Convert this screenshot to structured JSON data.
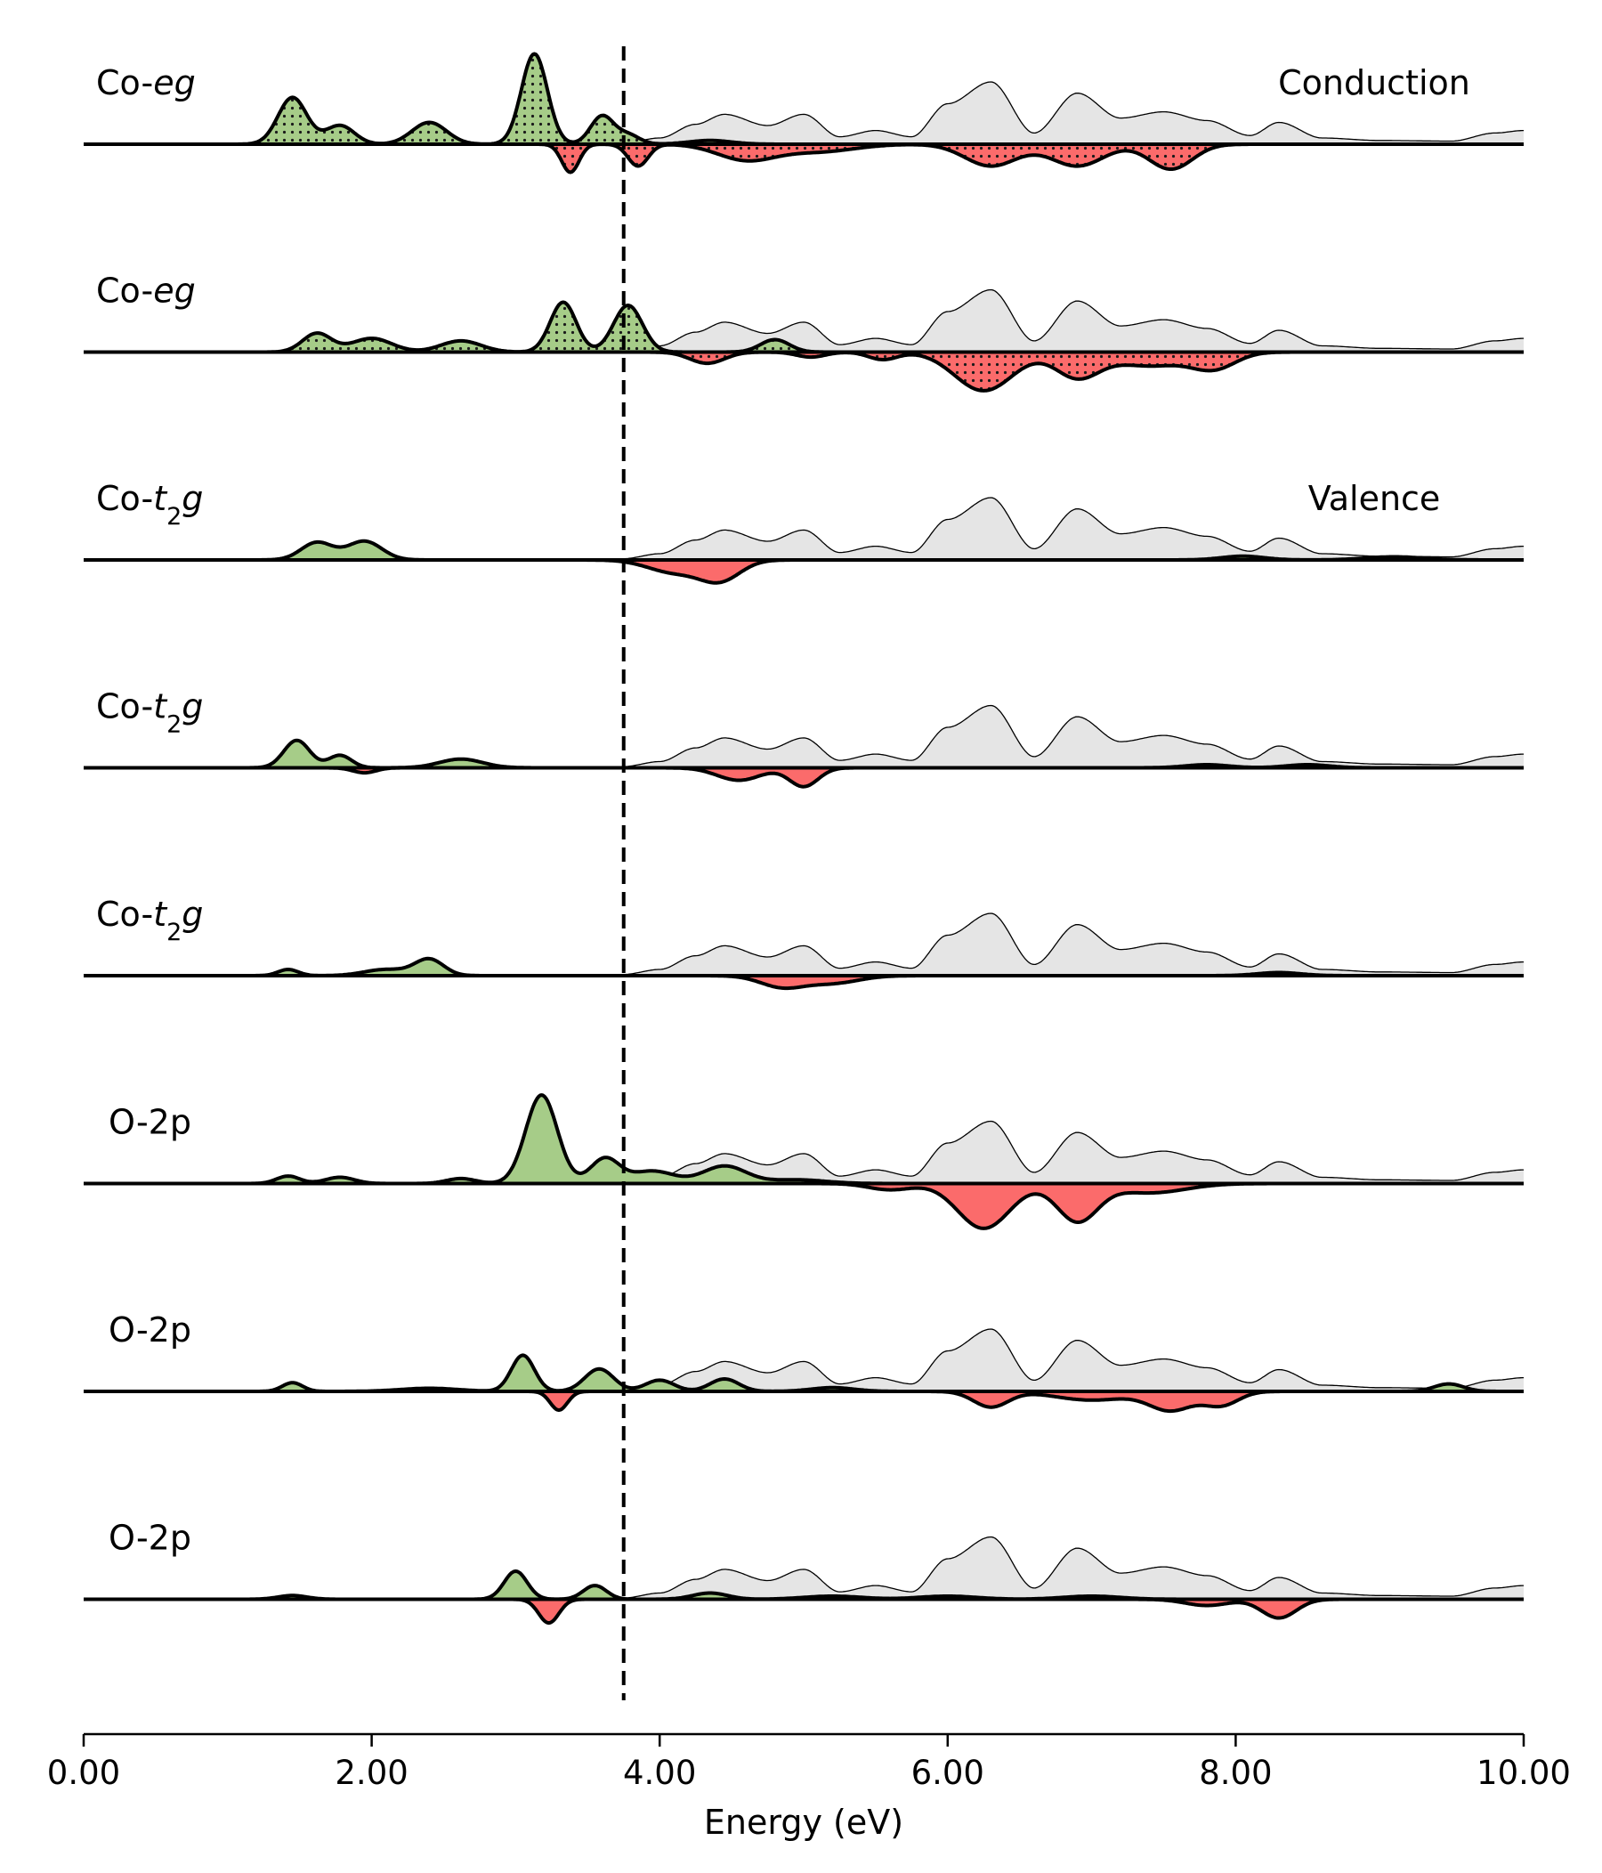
{
  "chart_data": {
    "type": "area",
    "xlabel": "Energy (eV)",
    "xlim": [
      0,
      10
    ],
    "xticks": [
      "0.00",
      "2.00",
      "4.00",
      "6.00",
      "8.00",
      "10.00"
    ],
    "fermi_level": 3.75,
    "annotations": [
      "Conduction",
      "Valence"
    ],
    "colors": {
      "up": "#a6cc88",
      "down": "#fb6b6b",
      "background": "#e5e5e5",
      "line": "#000000"
    },
    "background_dos": {
      "x": [
        3.75,
        4.0,
        4.25,
        4.45,
        4.75,
        5.0,
        5.25,
        5.5,
        5.75,
        6.0,
        6.3,
        6.6,
        6.9,
        7.2,
        7.5,
        7.8,
        8.1,
        8.3,
        8.6,
        9.0,
        9.5,
        9.8,
        10.0
      ],
      "y": [
        0.02,
        0.1,
        0.32,
        0.48,
        0.3,
        0.48,
        0.12,
        0.22,
        0.12,
        0.65,
        1.0,
        0.18,
        0.82,
        0.42,
        0.52,
        0.38,
        0.14,
        0.35,
        0.1,
        0.06,
        0.05,
        0.18,
        0.22
      ]
    },
    "panels": [
      {
        "label_prefix": "Co-",
        "label_italic": "eg",
        "label_sub": "",
        "label_tail": "",
        "up": {
          "x": [
            1.45,
            1.78,
            2.4,
            3.13,
            3.6,
            3.78,
            4.35
          ],
          "y": [
            0.75,
            0.3,
            0.35,
            1.45,
            0.45,
            0.15,
            0.06
          ],
          "w": [
            0.1,
            0.1,
            0.12,
            0.09,
            0.08,
            0.08,
            0.15
          ]
        },
        "down": {
          "x": [
            3.38,
            3.85,
            4.6,
            5.1,
            6.3,
            6.9,
            7.55
          ],
          "y": [
            0.45,
            0.35,
            0.25,
            0.12,
            0.35,
            0.35,
            0.4
          ],
          "w": [
            0.06,
            0.07,
            0.2,
            0.25,
            0.18,
            0.18,
            0.15
          ]
        },
        "hatch": true
      },
      {
        "label_prefix": "Co-",
        "label_italic": "eg",
        "label_sub": "",
        "label_tail": "",
        "up": {
          "x": [
            1.62,
            2.0,
            2.62,
            3.33,
            3.78,
            4.8
          ],
          "y": [
            0.3,
            0.22,
            0.18,
            0.8,
            0.75,
            0.2
          ],
          "w": [
            0.1,
            0.14,
            0.14,
            0.09,
            0.1,
            0.1
          ]
        },
        "down": {
          "x": [
            4.33,
            5.05,
            5.55,
            6.25,
            6.9,
            7.4,
            7.85
          ],
          "y": [
            0.18,
            0.08,
            0.12,
            0.62,
            0.4,
            0.22,
            0.25
          ],
          "w": [
            0.12,
            0.1,
            0.1,
            0.2,
            0.15,
            0.25,
            0.15
          ]
        },
        "hatch": true
      },
      {
        "label_prefix": "Co-",
        "label_italic": "t",
        "label_sub": "2",
        "label_tail": "g",
        "up": {
          "x": [
            1.62,
            1.95,
            8.05,
            9.1
          ],
          "y": [
            0.28,
            0.3,
            0.06,
            0.05
          ],
          "w": [
            0.11,
            0.12,
            0.15,
            0.2
          ]
        },
        "down": {
          "x": [
            4.1,
            4.42
          ],
          "y": [
            0.2,
            0.32
          ],
          "w": [
            0.18,
            0.14
          ]
        },
        "hatch": false
      },
      {
        "label_prefix": "Co-",
        "label_italic": "t",
        "label_sub": "2",
        "label_tail": "g",
        "up": {
          "x": [
            1.48,
            1.78,
            2.62,
            7.8,
            8.5
          ],
          "y": [
            0.44,
            0.2,
            0.14,
            0.05,
            0.05
          ],
          "w": [
            0.09,
            0.08,
            0.15,
            0.15,
            0.15
          ]
        },
        "down": {
          "x": [
            1.95,
            4.55,
            5.0
          ],
          "y": [
            0.08,
            0.2,
            0.3
          ],
          "w": [
            0.08,
            0.15,
            0.1
          ]
        },
        "hatch": false
      },
      {
        "label_prefix": "Co-",
        "label_italic": "t",
        "label_sub": "2",
        "label_tail": "g",
        "up": {
          "x": [
            1.42,
            2.1,
            2.4,
            8.3
          ],
          "y": [
            0.1,
            0.1,
            0.26,
            0.05
          ],
          "w": [
            0.07,
            0.15,
            0.1,
            0.15
          ]
        },
        "down": {
          "x": [
            4.85,
            5.2
          ],
          "y": [
            0.18,
            0.12
          ],
          "w": [
            0.15,
            0.18
          ]
        },
        "hatch": false
      },
      {
        "label_prefix": "O-2p",
        "label_italic": "",
        "label_sub": "",
        "label_tail": "",
        "up": {
          "x": [
            1.42,
            1.78,
            2.62,
            3.18,
            3.62,
            3.95,
            4.45,
            4.95
          ],
          "y": [
            0.12,
            0.1,
            0.08,
            1.42,
            0.4,
            0.2,
            0.28,
            0.06
          ],
          "w": [
            0.08,
            0.1,
            0.1,
            0.11,
            0.1,
            0.15,
            0.15,
            0.2
          ]
        },
        "down": {
          "x": [
            5.6,
            6.25,
            6.9,
            7.4
          ],
          "y": [
            0.1,
            0.72,
            0.6,
            0.15
          ],
          "w": [
            0.15,
            0.18,
            0.14,
            0.25
          ]
        },
        "hatch": false
      },
      {
        "label_prefix": "O-2p",
        "label_italic": "",
        "label_sub": "",
        "label_tail": "",
        "up": {
          "x": [
            1.45,
            2.4,
            3.05,
            3.58,
            4.0,
            4.45,
            5.2,
            9.48
          ],
          "y": [
            0.14,
            0.05,
            0.58,
            0.36,
            0.18,
            0.2,
            0.06,
            0.12
          ],
          "w": [
            0.07,
            0.2,
            0.08,
            0.1,
            0.1,
            0.1,
            0.15,
            0.1
          ]
        },
        "down": {
          "x": [
            3.3,
            6.3,
            7.0,
            7.55,
            7.9
          ],
          "y": [
            0.3,
            0.25,
            0.14,
            0.3,
            0.22
          ],
          "w": [
            0.06,
            0.12,
            0.25,
            0.15,
            0.12
          ]
        },
        "hatch": false
      },
      {
        "label_prefix": "O-2p",
        "label_italic": "",
        "label_sub": "",
        "label_tail": "",
        "up": {
          "x": [
            1.45,
            3.0,
            3.55,
            4.35,
            5.2,
            6.0,
            7.0
          ],
          "y": [
            0.06,
            0.45,
            0.22,
            0.1,
            0.05,
            0.05,
            0.05
          ],
          "w": [
            0.1,
            0.08,
            0.08,
            0.12,
            0.2,
            0.2,
            0.2
          ]
        },
        "down": {
          "x": [
            3.23,
            8.3,
            7.8
          ],
          "y": [
            0.38,
            0.3,
            0.1
          ],
          "w": [
            0.07,
            0.12,
            0.15
          ]
        },
        "hatch": false
      }
    ]
  }
}
